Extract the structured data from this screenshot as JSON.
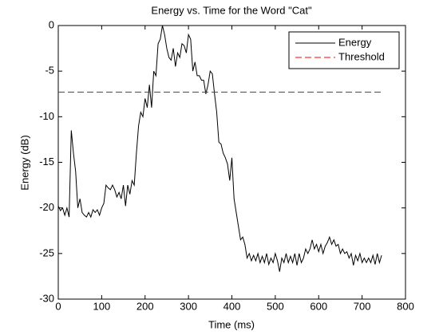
{
  "chart_data": {
    "type": "line",
    "title": "Energy vs. Time for the Word \"Cat\"",
    "xlabel": "Time (ms)",
    "ylabel": "Energy (dB)",
    "xlim": [
      0,
      800
    ],
    "ylim": [
      -30,
      0
    ],
    "xticks": [
      0,
      100,
      200,
      300,
      400,
      500,
      600,
      700,
      800
    ],
    "yticks": [
      0,
      -5,
      -10,
      -15,
      -20,
      -25,
      -30
    ],
    "legend": "upper right",
    "series": [
      {
        "name": "Energy",
        "color": "#000000",
        "linestyle": "solid",
        "x": [
          0,
          5,
          10,
          15,
          20,
          25,
          30,
          35,
          40,
          45,
          50,
          55,
          60,
          65,
          70,
          75,
          80,
          85,
          90,
          95,
          100,
          105,
          110,
          115,
          120,
          125,
          130,
          135,
          140,
          145,
          150,
          155,
          160,
          165,
          170,
          175,
          180,
          185,
          190,
          195,
          200,
          205,
          210,
          215,
          220,
          225,
          230,
          235,
          240,
          245,
          250,
          255,
          260,
          265,
          270,
          275,
          280,
          285,
          290,
          295,
          300,
          305,
          310,
          315,
          320,
          325,
          330,
          335,
          340,
          345,
          350,
          355,
          360,
          365,
          370,
          375,
          380,
          385,
          390,
          395,
          400,
          405,
          410,
          415,
          420,
          425,
          430,
          435,
          440,
          445,
          450,
          455,
          460,
          465,
          470,
          475,
          480,
          485,
          490,
          495,
          500,
          505,
          510,
          515,
          520,
          525,
          530,
          535,
          540,
          545,
          550,
          555,
          560,
          565,
          570,
          575,
          580,
          585,
          590,
          595,
          600,
          605,
          610,
          615,
          620,
          625,
          630,
          635,
          640,
          645,
          650,
          655,
          660,
          665,
          670,
          675,
          680,
          685,
          690,
          695,
          700,
          705,
          710,
          715,
          720,
          725,
          730,
          735,
          740,
          745
        ],
        "values": [
          -19.8,
          -20.3,
          -20,
          -20.8,
          -20,
          -21,
          -11.5,
          -14,
          -16,
          -20,
          -19,
          -20.5,
          -20.8,
          -21,
          -20.5,
          -21,
          -20.2,
          -20.5,
          -20.2,
          -20.8,
          -20,
          -19.5,
          -17.5,
          -17.8,
          -18,
          -17.5,
          -18,
          -18.8,
          -18.3,
          -19,
          -17.5,
          -19.8,
          -17.5,
          -18.5,
          -17,
          -17.5,
          -14,
          -11,
          -9.5,
          -10,
          -8,
          -9,
          -6.5,
          -9,
          -5,
          -5.5,
          -2,
          -1.5,
          0,
          -1,
          -2.5,
          -3.5,
          -3.8,
          -2.5,
          -4.5,
          -3,
          -3.5,
          -2,
          -2.2,
          -3,
          -1,
          -1.5,
          -5,
          -4,
          -5.5,
          -5.5,
          -6,
          -6,
          -7.5,
          -6.5,
          -5,
          -5.3,
          -7.5,
          -9.5,
          -12.8,
          -13,
          -14,
          -14.5,
          -15.2,
          -17,
          -14.5,
          -19,
          -20.5,
          -22,
          -23.5,
          -23.2,
          -24,
          -25.5,
          -25,
          -25.8,
          -25.2,
          -25.8,
          -25,
          -26,
          -25.3,
          -26,
          -25,
          -26.2,
          -25.5,
          -26,
          -25,
          -25.8,
          -27,
          -25.5,
          -26,
          -25,
          -26,
          -25.3,
          -26,
          -25,
          -26.3,
          -25,
          -26,
          -25.5,
          -24.5,
          -25,
          -24.5,
          -23.5,
          -24.5,
          -24,
          -24.8,
          -24,
          -25,
          -24.2,
          -23.8,
          -23.2,
          -24,
          -23.5,
          -24.2,
          -24,
          -25,
          -24.5,
          -25,
          -24.8,
          -25.5,
          -25,
          -26.3,
          -25.2,
          -25.8,
          -25,
          -26,
          -25.5,
          -26,
          -25.5,
          -26,
          -25.2,
          -26.2,
          -25,
          -26,
          -25.2
        ]
      },
      {
        "name": "Threshold",
        "color": "#ff0000",
        "linestyle": "dashed",
        "x": [
          0,
          745
        ],
        "values": [
          -7.3,
          -7.3
        ]
      }
    ]
  }
}
